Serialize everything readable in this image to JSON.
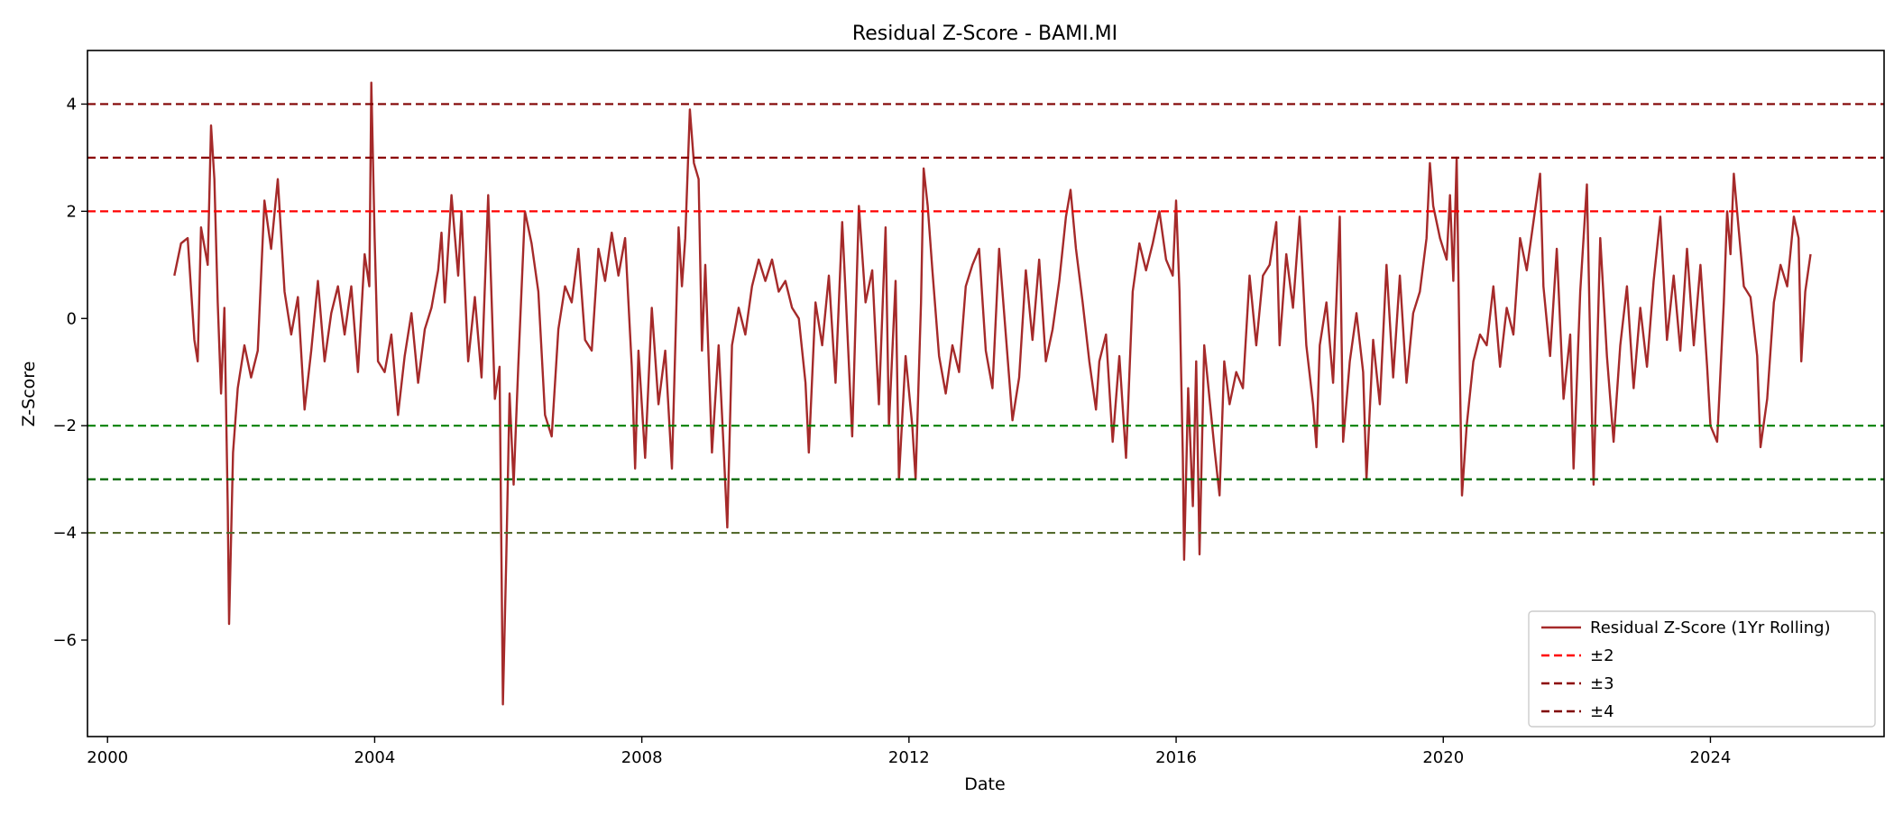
{
  "chart_data": {
    "type": "line",
    "title": "Residual Z-Score - BAMI.MI",
    "xlabel": "Date",
    "ylabel": "Z-Score",
    "xlim": [
      1999.7,
      2026.6
    ],
    "ylim": [
      -7.8,
      5.0
    ],
    "x_ticks": [
      2000,
      2004,
      2008,
      2012,
      2016,
      2020,
      2024
    ],
    "x_tick_labels": [
      "2000",
      "2004",
      "2008",
      "2012",
      "2016",
      "2020",
      "2024"
    ],
    "y_ticks": [
      -6,
      -4,
      -2,
      0,
      2,
      4
    ],
    "y_tick_labels": [
      "−6",
      "−4",
      "−2",
      "0",
      "2",
      "4"
    ],
    "grid": false,
    "legend_position": "lower-right",
    "series": [
      {
        "name": "Residual Z-Score (1Yr Rolling)",
        "color": "#a52a2a",
        "style": "solid",
        "points": [
          [
            2001.0,
            0.8
          ],
          [
            2001.1,
            1.4
          ],
          [
            2001.2,
            1.5
          ],
          [
            2001.3,
            -0.4
          ],
          [
            2001.35,
            -0.8
          ],
          [
            2001.4,
            1.7
          ],
          [
            2001.5,
            1.0
          ],
          [
            2001.55,
            3.6
          ],
          [
            2001.6,
            2.6
          ],
          [
            2001.65,
            0.3
          ],
          [
            2001.7,
            -1.4
          ],
          [
            2001.75,
            0.2
          ],
          [
            2001.8,
            -3.5
          ],
          [
            2001.82,
            -5.7
          ],
          [
            2001.88,
            -2.5
          ],
          [
            2001.95,
            -1.3
          ],
          [
            2002.05,
            -0.5
          ],
          [
            2002.15,
            -1.1
          ],
          [
            2002.25,
            -0.6
          ],
          [
            2002.35,
            2.2
          ],
          [
            2002.45,
            1.3
          ],
          [
            2002.55,
            2.6
          ],
          [
            2002.65,
            0.5
          ],
          [
            2002.75,
            -0.3
          ],
          [
            2002.85,
            0.4
          ],
          [
            2002.95,
            -1.7
          ],
          [
            2003.05,
            -0.6
          ],
          [
            2003.15,
            0.7
          ],
          [
            2003.25,
            -0.8
          ],
          [
            2003.35,
            0.1
          ],
          [
            2003.45,
            0.6
          ],
          [
            2003.55,
            -0.3
          ],
          [
            2003.65,
            0.6
          ],
          [
            2003.75,
            -1.0
          ],
          [
            2003.85,
            1.2
          ],
          [
            2003.92,
            0.6
          ],
          [
            2003.95,
            4.4
          ],
          [
            2004.0,
            1.5
          ],
          [
            2004.05,
            -0.8
          ],
          [
            2004.15,
            -1.0
          ],
          [
            2004.25,
            -0.3
          ],
          [
            2004.35,
            -1.8
          ],
          [
            2004.45,
            -0.7
          ],
          [
            2004.55,
            0.1
          ],
          [
            2004.65,
            -1.2
          ],
          [
            2004.75,
            -0.2
          ],
          [
            2004.85,
            0.2
          ],
          [
            2004.95,
            0.9
          ],
          [
            2005.0,
            1.6
          ],
          [
            2005.05,
            0.3
          ],
          [
            2005.15,
            2.3
          ],
          [
            2005.25,
            0.8
          ],
          [
            2005.3,
            2.0
          ],
          [
            2005.4,
            -0.8
          ],
          [
            2005.5,
            0.4
          ],
          [
            2005.6,
            -1.1
          ],
          [
            2005.7,
            2.3
          ],
          [
            2005.8,
            -1.5
          ],
          [
            2005.87,
            -0.9
          ],
          [
            2005.92,
            -7.2
          ],
          [
            2005.97,
            -4.5
          ],
          [
            2006.02,
            -1.4
          ],
          [
            2006.08,
            -3.1
          ],
          [
            2006.15,
            -0.9
          ],
          [
            2006.25,
            2.0
          ],
          [
            2006.35,
            1.4
          ],
          [
            2006.45,
            0.5
          ],
          [
            2006.55,
            -1.8
          ],
          [
            2006.65,
            -2.2
          ],
          [
            2006.75,
            -0.2
          ],
          [
            2006.85,
            0.6
          ],
          [
            2006.95,
            0.3
          ],
          [
            2007.05,
            1.3
          ],
          [
            2007.15,
            -0.4
          ],
          [
            2007.25,
            -0.6
          ],
          [
            2007.35,
            1.3
          ],
          [
            2007.45,
            0.7
          ],
          [
            2007.55,
            1.6
          ],
          [
            2007.65,
            0.8
          ],
          [
            2007.75,
            1.5
          ],
          [
            2007.85,
            -0.9
          ],
          [
            2007.9,
            -2.8
          ],
          [
            2007.95,
            -0.6
          ],
          [
            2008.05,
            -2.6
          ],
          [
            2008.15,
            0.2
          ],
          [
            2008.25,
            -1.6
          ],
          [
            2008.35,
            -0.6
          ],
          [
            2008.45,
            -2.8
          ],
          [
            2008.55,
            1.7
          ],
          [
            2008.6,
            0.6
          ],
          [
            2008.65,
            1.5
          ],
          [
            2008.72,
            3.9
          ],
          [
            2008.78,
            2.9
          ],
          [
            2008.85,
            2.6
          ],
          [
            2008.9,
            -0.6
          ],
          [
            2008.95,
            1.0
          ],
          [
            2009.05,
            -2.5
          ],
          [
            2009.15,
            -0.5
          ],
          [
            2009.22,
            -2.3
          ],
          [
            2009.28,
            -3.9
          ],
          [
            2009.35,
            -0.5
          ],
          [
            2009.45,
            0.2
          ],
          [
            2009.55,
            -0.3
          ],
          [
            2009.65,
            0.6
          ],
          [
            2009.75,
            1.1
          ],
          [
            2009.85,
            0.7
          ],
          [
            2009.95,
            1.1
          ],
          [
            2010.05,
            0.5
          ],
          [
            2010.15,
            0.7
          ],
          [
            2010.25,
            0.2
          ],
          [
            2010.35,
            0.0
          ],
          [
            2010.45,
            -1.2
          ],
          [
            2010.5,
            -2.5
          ],
          [
            2010.6,
            0.3
          ],
          [
            2010.7,
            -0.5
          ],
          [
            2010.8,
            0.8
          ],
          [
            2010.9,
            -1.2
          ],
          [
            2011.0,
            1.8
          ],
          [
            2011.05,
            0.5
          ],
          [
            2011.15,
            -2.2
          ],
          [
            2011.25,
            2.1
          ],
          [
            2011.35,
            0.3
          ],
          [
            2011.45,
            0.9
          ],
          [
            2011.55,
            -1.6
          ],
          [
            2011.65,
            1.7
          ],
          [
            2011.7,
            -2.0
          ],
          [
            2011.8,
            0.7
          ],
          [
            2011.85,
            -3.0
          ],
          [
            2011.95,
            -0.7
          ],
          [
            2012.05,
            -2.0
          ],
          [
            2012.1,
            -3.0
          ],
          [
            2012.18,
            0.3
          ],
          [
            2012.22,
            2.8
          ],
          [
            2012.28,
            2.1
          ],
          [
            2012.35,
            0.9
          ],
          [
            2012.45,
            -0.7
          ],
          [
            2012.55,
            -1.4
          ],
          [
            2012.65,
            -0.5
          ],
          [
            2012.75,
            -1.0
          ],
          [
            2012.85,
            0.6
          ],
          [
            2012.95,
            1.0
          ],
          [
            2013.05,
            1.3
          ],
          [
            2013.15,
            -0.6
          ],
          [
            2013.25,
            -1.3
          ],
          [
            2013.35,
            1.3
          ],
          [
            2013.45,
            -0.3
          ],
          [
            2013.55,
            -1.9
          ],
          [
            2013.65,
            -1.1
          ],
          [
            2013.75,
            0.9
          ],
          [
            2013.85,
            -0.4
          ],
          [
            2013.95,
            1.1
          ],
          [
            2014.05,
            -0.8
          ],
          [
            2014.15,
            -0.2
          ],
          [
            2014.25,
            0.7
          ],
          [
            2014.35,
            1.9
          ],
          [
            2014.42,
            2.4
          ],
          [
            2014.5,
            1.3
          ],
          [
            2014.6,
            0.3
          ],
          [
            2014.7,
            -0.8
          ],
          [
            2014.8,
            -1.7
          ],
          [
            2014.85,
            -0.8
          ],
          [
            2014.95,
            -0.3
          ],
          [
            2015.05,
            -2.3
          ],
          [
            2015.15,
            -0.7
          ],
          [
            2015.25,
            -2.6
          ],
          [
            2015.35,
            0.5
          ],
          [
            2015.45,
            1.4
          ],
          [
            2015.55,
            0.9
          ],
          [
            2015.65,
            1.4
          ],
          [
            2015.75,
            2.0
          ],
          [
            2015.85,
            1.1
          ],
          [
            2015.95,
            0.8
          ],
          [
            2016.0,
            2.2
          ],
          [
            2016.05,
            0.5
          ],
          [
            2016.1,
            -2.6
          ],
          [
            2016.12,
            -4.5
          ],
          [
            2016.18,
            -1.3
          ],
          [
            2016.25,
            -3.5
          ],
          [
            2016.3,
            -0.8
          ],
          [
            2016.35,
            -4.4
          ],
          [
            2016.42,
            -0.5
          ],
          [
            2016.5,
            -1.5
          ],
          [
            2016.58,
            -2.5
          ],
          [
            2016.65,
            -3.3
          ],
          [
            2016.72,
            -0.8
          ],
          [
            2016.8,
            -1.6
          ],
          [
            2016.9,
            -1.0
          ],
          [
            2017.0,
            -1.3
          ],
          [
            2017.1,
            0.8
          ],
          [
            2017.2,
            -0.5
          ],
          [
            2017.3,
            0.8
          ],
          [
            2017.4,
            1.0
          ],
          [
            2017.5,
            1.8
          ],
          [
            2017.55,
            -0.5
          ],
          [
            2017.65,
            1.2
          ],
          [
            2017.75,
            0.2
          ],
          [
            2017.85,
            1.9
          ],
          [
            2017.95,
            -0.5
          ],
          [
            2018.05,
            -1.6
          ],
          [
            2018.1,
            -2.4
          ],
          [
            2018.15,
            -0.5
          ],
          [
            2018.25,
            0.3
          ],
          [
            2018.35,
            -1.2
          ],
          [
            2018.45,
            1.9
          ],
          [
            2018.5,
            -2.3
          ],
          [
            2018.6,
            -0.8
          ],
          [
            2018.7,
            0.1
          ],
          [
            2018.8,
            -1.0
          ],
          [
            2018.85,
            -3.0
          ],
          [
            2018.95,
            -0.4
          ],
          [
            2019.05,
            -1.6
          ],
          [
            2019.15,
            1.0
          ],
          [
            2019.25,
            -1.1
          ],
          [
            2019.35,
            0.8
          ],
          [
            2019.45,
            -1.2
          ],
          [
            2019.55,
            0.1
          ],
          [
            2019.65,
            0.5
          ],
          [
            2019.75,
            1.5
          ],
          [
            2019.8,
            2.9
          ],
          [
            2019.85,
            2.1
          ],
          [
            2019.95,
            1.5
          ],
          [
            2020.05,
            1.1
          ],
          [
            2020.1,
            2.3
          ],
          [
            2020.15,
            0.7
          ],
          [
            2020.2,
            3.0
          ],
          [
            2020.25,
            -1.2
          ],
          [
            2020.28,
            -3.3
          ],
          [
            2020.35,
            -2.0
          ],
          [
            2020.45,
            -0.8
          ],
          [
            2020.55,
            -0.3
          ],
          [
            2020.65,
            -0.5
          ],
          [
            2020.75,
            0.6
          ],
          [
            2020.85,
            -0.9
          ],
          [
            2020.95,
            0.2
          ],
          [
            2021.05,
            -0.3
          ],
          [
            2021.15,
            1.5
          ],
          [
            2021.25,
            0.9
          ],
          [
            2021.35,
            1.8
          ],
          [
            2021.45,
            2.7
          ],
          [
            2021.5,
            0.6
          ],
          [
            2021.6,
            -0.7
          ],
          [
            2021.7,
            1.3
          ],
          [
            2021.8,
            -1.5
          ],
          [
            2021.9,
            -0.3
          ],
          [
            2021.95,
            -2.8
          ],
          [
            2022.05,
            0.5
          ],
          [
            2022.15,
            2.5
          ],
          [
            2022.2,
            -0.5
          ],
          [
            2022.25,
            -3.1
          ],
          [
            2022.35,
            1.5
          ],
          [
            2022.45,
            -0.7
          ],
          [
            2022.55,
            -2.3
          ],
          [
            2022.65,
            -0.5
          ],
          [
            2022.75,
            0.6
          ],
          [
            2022.85,
            -1.3
          ],
          [
            2022.95,
            0.2
          ],
          [
            2023.05,
            -0.9
          ],
          [
            2023.15,
            0.7
          ],
          [
            2023.25,
            1.9
          ],
          [
            2023.35,
            -0.4
          ],
          [
            2023.45,
            0.8
          ],
          [
            2023.55,
            -0.6
          ],
          [
            2023.65,
            1.3
          ],
          [
            2023.75,
            -0.5
          ],
          [
            2023.85,
            1.0
          ],
          [
            2023.95,
            -0.9
          ],
          [
            2024.0,
            -2.0
          ],
          [
            2024.1,
            -2.3
          ],
          [
            2024.2,
            0.3
          ],
          [
            2024.25,
            2.0
          ],
          [
            2024.3,
            1.2
          ],
          [
            2024.35,
            2.7
          ],
          [
            2024.42,
            1.7
          ],
          [
            2024.5,
            0.6
          ],
          [
            2024.6,
            0.4
          ],
          [
            2024.7,
            -0.7
          ],
          [
            2024.75,
            -2.4
          ],
          [
            2024.85,
            -1.5
          ],
          [
            2024.95,
            0.3
          ],
          [
            2025.05,
            1.0
          ],
          [
            2025.15,
            0.6
          ],
          [
            2025.25,
            1.9
          ],
          [
            2025.32,
            1.5
          ],
          [
            2025.36,
            -0.8
          ],
          [
            2025.42,
            0.5
          ],
          [
            2025.5,
            1.2
          ]
        ]
      },
      {
        "name": "±2",
        "color": "#ff0000",
        "style": "dashed",
        "levels": [
          2
        ]
      },
      {
        "name": "±3",
        "color": "#8b0000",
        "style": "dashed",
        "levels": [
          3
        ]
      },
      {
        "name": "±4",
        "color": "#800000",
        "style": "dashed",
        "levels": [
          4
        ]
      }
    ],
    "lower_bands": [
      {
        "level": -2,
        "color": "#008000"
      },
      {
        "level": -3,
        "color": "#006400"
      },
      {
        "level": -4,
        "color": "#556b2f"
      }
    ]
  }
}
